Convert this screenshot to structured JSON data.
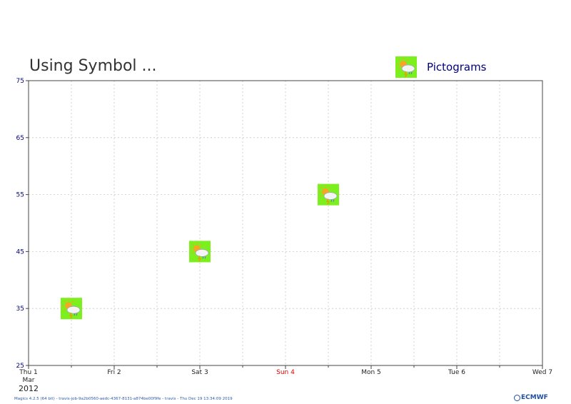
{
  "chart_data": {
    "type": "scatter",
    "title": "Using Symbol ...",
    "legend": {
      "label": "Pictograms",
      "position": "top-right"
    },
    "x_ticks": [
      {
        "label": "Thu 1",
        "color": "#222222"
      },
      {
        "label": "Fri 2",
        "color": "#222222"
      },
      {
        "label": "Sat 3",
        "color": "#222222"
      },
      {
        "label": "Sun 4",
        "color": "#e00000"
      },
      {
        "label": "Mon 5",
        "color": "#222222"
      },
      {
        "label": "Tue 6",
        "color": "#222222"
      },
      {
        "label": "Wed 7",
        "color": "#222222"
      }
    ],
    "x_sublabel_month": "Mar",
    "x_sublabel_year": "2012",
    "xlim": [
      "2012-03-01",
      "2012-03-07"
    ],
    "ylim": [
      25,
      75
    ],
    "y_ticks": [
      "25",
      "35",
      "45",
      "55",
      "65",
      "75"
    ],
    "points": [
      {
        "x": "2012-03-01 12:00",
        "y": 35
      },
      {
        "x": "2012-03-03 00:00",
        "y": 45
      },
      {
        "x": "2012-03-04 12:00",
        "y": 55
      }
    ],
    "marker": "weather-pictogram-sun-cloud-rain-lightning",
    "grid": true
  },
  "footer": {
    "info": "Magics 4.2.5 (64 bit) - travis-job-9a2b0560-aedc-4367-8131-a874be00f9fe - travis - Thu Dec 19 13:34:09 2019",
    "logo": "ECMWF"
  }
}
